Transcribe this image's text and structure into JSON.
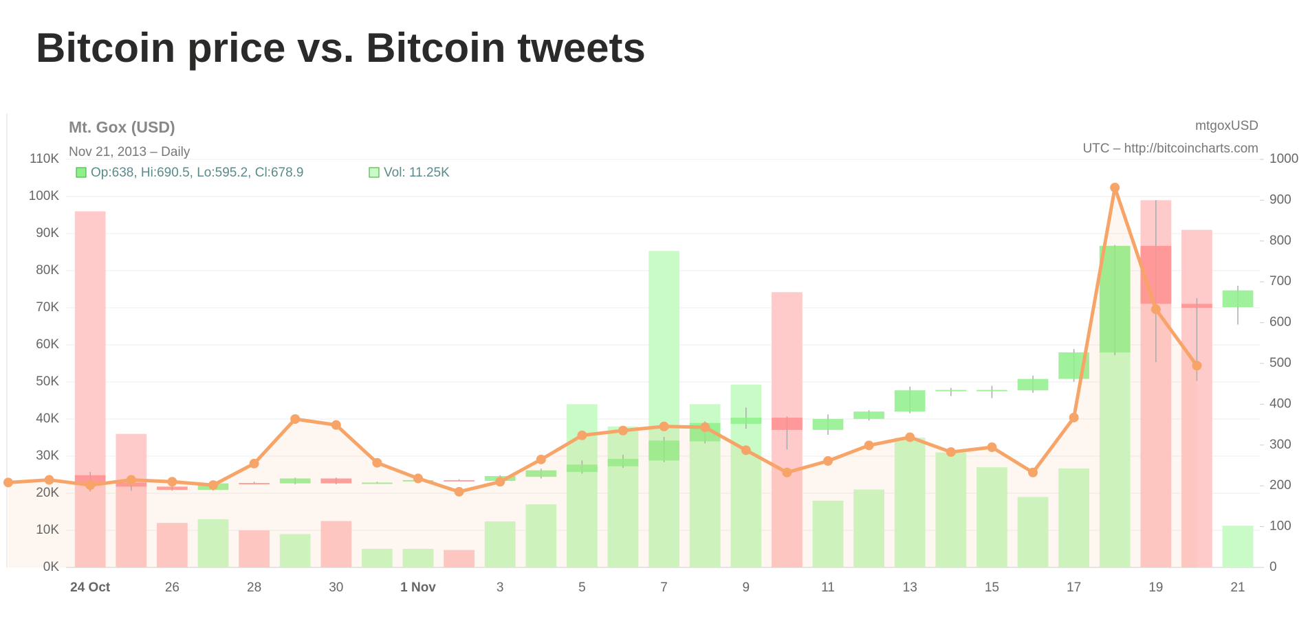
{
  "header": {
    "title": "Bitcoin price vs. Bitcoin tweets"
  },
  "chart_data": {
    "type": "candlestick",
    "title": "Mt. Gox (USD)",
    "subtitle": "Nov 21, 2013 – Daily",
    "symbol": "mtgoxUSD",
    "source": "UTC – http://bitcoincharts.com",
    "legend": [
      "Op:638, Hi:690.5, Lo:595.2, Cl:678.9",
      "Vol: 11.25K"
    ],
    "categories": [
      null,
      null,
      "24 Oct",
      null,
      "26",
      null,
      "28",
      null,
      "30",
      null,
      "1 Nov",
      null,
      "3",
      null,
      "5",
      null,
      "7",
      null,
      "9",
      null,
      "11",
      null,
      "13",
      null,
      "15",
      null,
      "17",
      null,
      "19",
      null,
      "21"
    ],
    "ylim": [
      0,
      110000
    ],
    "yticks": [
      {
        "value": 0,
        "label": "0K"
      },
      {
        "value": 10000,
        "label": "10K"
      },
      {
        "value": 20000,
        "label": "20K"
      },
      {
        "value": 30000,
        "label": "30K"
      },
      {
        "value": 40000,
        "label": "40K"
      },
      {
        "value": 50000,
        "label": "50K"
      },
      {
        "value": 60000,
        "label": "60K"
      },
      {
        "value": 70000,
        "label": "70K"
      },
      {
        "value": 80000,
        "label": "80K"
      },
      {
        "value": 90000,
        "label": "90K"
      },
      {
        "value": 100000,
        "label": "100K"
      },
      {
        "value": 110000,
        "label": "110K"
      }
    ],
    "y2lim": [
      0,
      1000
    ],
    "y2ticks": [
      0,
      100,
      200,
      300,
      400,
      500,
      600,
      700,
      800,
      900,
      1000
    ],
    "grid": true,
    "layers": [
      {
        "type": "bar",
        "axis": "y",
        "up_color": "#c9fbc6",
        "down_color": "#ffcaca",
        "values": [
          null,
          null,
          96000,
          36000,
          12000,
          13000,
          10000,
          9000,
          12500,
          5000,
          5000,
          4700,
          12400,
          17000,
          44000,
          38000,
          85300,
          44000,
          49300,
          74200,
          18000,
          21000,
          35000,
          31000,
          27000,
          19000,
          26700,
          86700,
          99000,
          91000,
          11250
        ]
      },
      {
        "type": "candlestick",
        "axis": "y2",
        "up_color": "#8ef08a",
        "down_color": "#ff8f8f",
        "wick_color": "#aaaaaa",
        "open": [
          null,
          null,
          226,
          208,
          198,
          190,
          207,
          206,
          218,
          207,
          212,
          214,
          212,
          222,
          234,
          248,
          262,
          309,
          352,
          367,
          337,
          364,
          382,
          433,
          434,
          434,
          462,
          527,
          788,
          646,
          638
        ],
        "high": [
          null,
          null,
          234,
          218,
          200,
          208,
          210,
          220,
          220,
          210,
          216,
          216,
          226,
          242,
          262,
          276,
          320,
          358,
          392,
          370,
          375,
          385,
          443,
          440,
          445,
          470,
          535,
          790,
          900,
          660,
          690.5
        ],
        "low": [
          null,
          null,
          186,
          188,
          188,
          188,
          206,
          204,
          204,
          205,
          210,
          212,
          210,
          218,
          230,
          244,
          258,
          304,
          340,
          289,
          325,
          360,
          378,
          420,
          415,
          428,
          455,
          520,
          503,
          457,
          595.2
        ],
        "close": [
          null,
          null,
          206,
          198,
          190,
          206,
          205,
          218,
          206,
          208,
          214,
          213,
          224,
          238,
          252,
          266,
          311,
          354,
          367,
          337,
          364,
          382,
          434,
          435,
          435,
          462,
          527,
          788,
          646,
          636,
          678.9
        ]
      },
      {
        "type": "line",
        "axis": "y",
        "color": "#f7a468",
        "values": [
          22900,
          23600,
          22200,
          23600,
          23100,
          22200,
          28000,
          40000,
          38400,
          28200,
          24000,
          20400,
          23100,
          29100,
          35600,
          36900,
          38000,
          37800,
          31600,
          25600,
          28700,
          32900,
          35100,
          31100,
          32400,
          25600,
          40400,
          102400,
          69600,
          54400,
          null
        ]
      }
    ]
  }
}
